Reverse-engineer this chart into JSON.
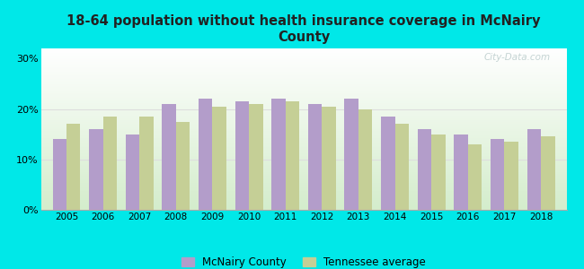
{
  "title": "18-64 population without health insurance coverage in McNairy\nCounty",
  "years": [
    2005,
    2006,
    2007,
    2008,
    2009,
    2010,
    2011,
    2012,
    2013,
    2014,
    2015,
    2016,
    2017,
    2018
  ],
  "mcnairy": [
    14.0,
    16.0,
    15.0,
    21.0,
    22.0,
    21.5,
    22.0,
    21.0,
    22.0,
    18.5,
    16.0,
    15.0,
    14.0,
    16.0
  ],
  "tennessee": [
    17.0,
    18.5,
    18.5,
    17.5,
    20.5,
    21.0,
    21.5,
    20.5,
    20.0,
    17.0,
    15.0,
    13.0,
    13.5,
    14.5
  ],
  "mcnairy_color": "#b39dca",
  "tennessee_color": "#c5cf96",
  "background_outer": "#00e8e8",
  "gradient_top": "#ffffff",
  "gradient_bottom": "#d4edcc",
  "yticks": [
    0,
    10,
    20,
    30
  ],
  "ylim": [
    0,
    32
  ],
  "bar_width": 0.38,
  "legend_mcnairy": "McNairy County",
  "legend_tennessee": "Tennessee average",
  "watermark": "City-Data.com"
}
